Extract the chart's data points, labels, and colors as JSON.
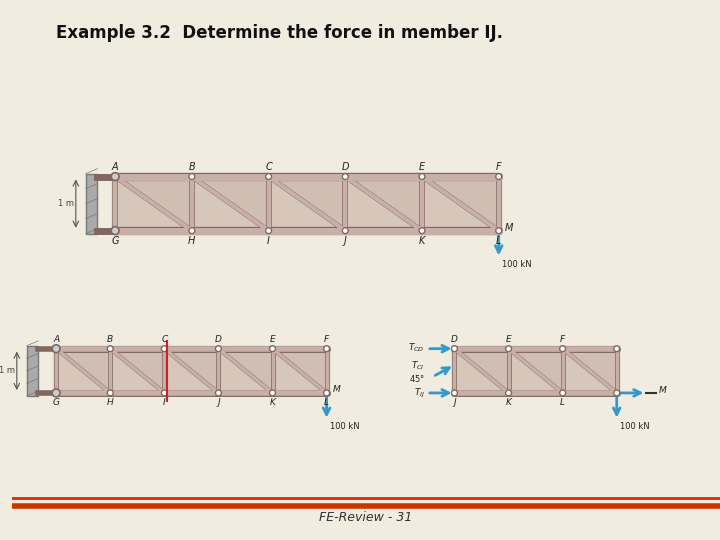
{
  "title": "Example 3.2  Determine the force in member IJ.",
  "title_fontsize": 12,
  "title_fontweight": "bold",
  "footer_text": "FE-Review - 31",
  "footer_fontsize": 9,
  "bg_color": "#f0ece0",
  "slide_bg": "#f0ece0",
  "img_bg": "#e8e0d0",
  "truss_fill": "#c8b0a8",
  "truss_edge": "#806860",
  "cut_color": "#cc2222",
  "arrow_color": "#3399cc",
  "border_color_top": "#cc3300",
  "border_color_bot": "#cc3300",
  "dim_text": "1 m"
}
